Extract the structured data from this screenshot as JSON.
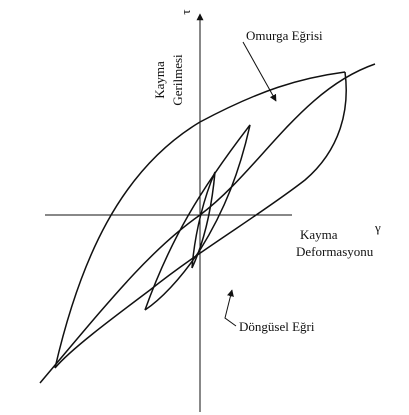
{
  "y_axis": {
    "label_lines": [
      "Kayma",
      "Gerilmesi"
    ],
    "symbol": "τ"
  },
  "x_axis": {
    "label_lines": [
      "Kayma",
      "Deformasyonu"
    ],
    "symbol": "γ"
  },
  "annotations": [
    "Omurga Eğrisi",
    "Döngüsel Eğri"
  ]
}
